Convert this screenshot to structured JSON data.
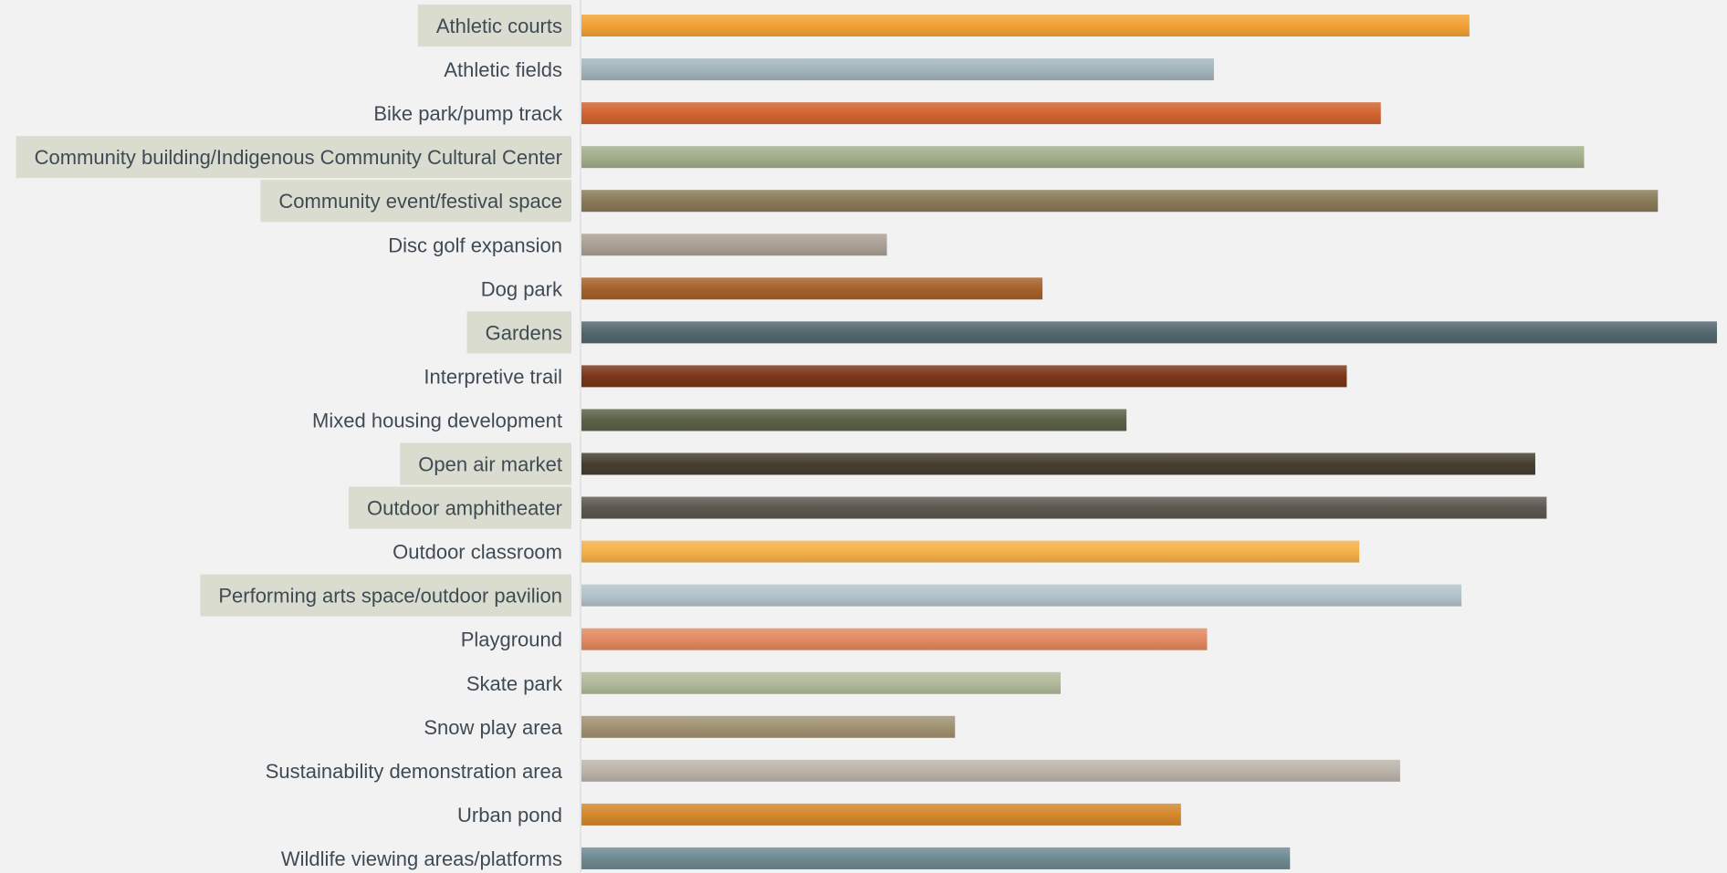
{
  "chart_data": {
    "type": "bar",
    "orientation": "horizontal",
    "title": "",
    "xlabel": "",
    "ylabel": "",
    "grid": false,
    "legend": "none",
    "xlim": [
      0,
      100
    ],
    "categories": [
      "Athletic courts",
      "Athletic fields",
      "Bike park/pump track",
      "Community building/Indigenous Community Cultural Center",
      "Community event/festival space",
      "Disc golf expansion",
      "Dog park",
      "Gardens",
      "Interpretive trail",
      "Mixed housing development",
      "Open air market",
      "Outdoor amphitheater",
      "Outdoor classroom",
      "Performing arts space/outdoor pavilion",
      "Playground",
      "Skate park",
      "Snow play area",
      "Sustainability demonstration area",
      "Urban pond",
      "Wildlife viewing areas/platforms"
    ],
    "values": [
      78.2,
      55.7,
      70.4,
      88.3,
      94.8,
      26.9,
      40.6,
      100,
      67.4,
      48.0,
      84.0,
      85.0,
      68.5,
      77.5,
      55.1,
      42.2,
      32.9,
      72.1,
      52.8,
      62.4
    ],
    "highlighted": [
      true,
      false,
      false,
      true,
      true,
      false,
      false,
      true,
      false,
      false,
      true,
      true,
      false,
      true,
      false,
      false,
      false,
      false,
      false,
      false
    ],
    "colors": [
      "#f2a233",
      "#a3b6bd",
      "#d2642f",
      "#a3ae8b",
      "#897a58",
      "#aaa095",
      "#a6622a",
      "#52676e",
      "#7b3619",
      "#5b6248",
      "#463f31",
      "#5d5750",
      "#f4b14a",
      "#b3c3ca",
      "#e28a62",
      "#b1ba9a",
      "#a19273",
      "#bcb4aa",
      "#d6882c",
      "#6f8a92"
    ]
  }
}
